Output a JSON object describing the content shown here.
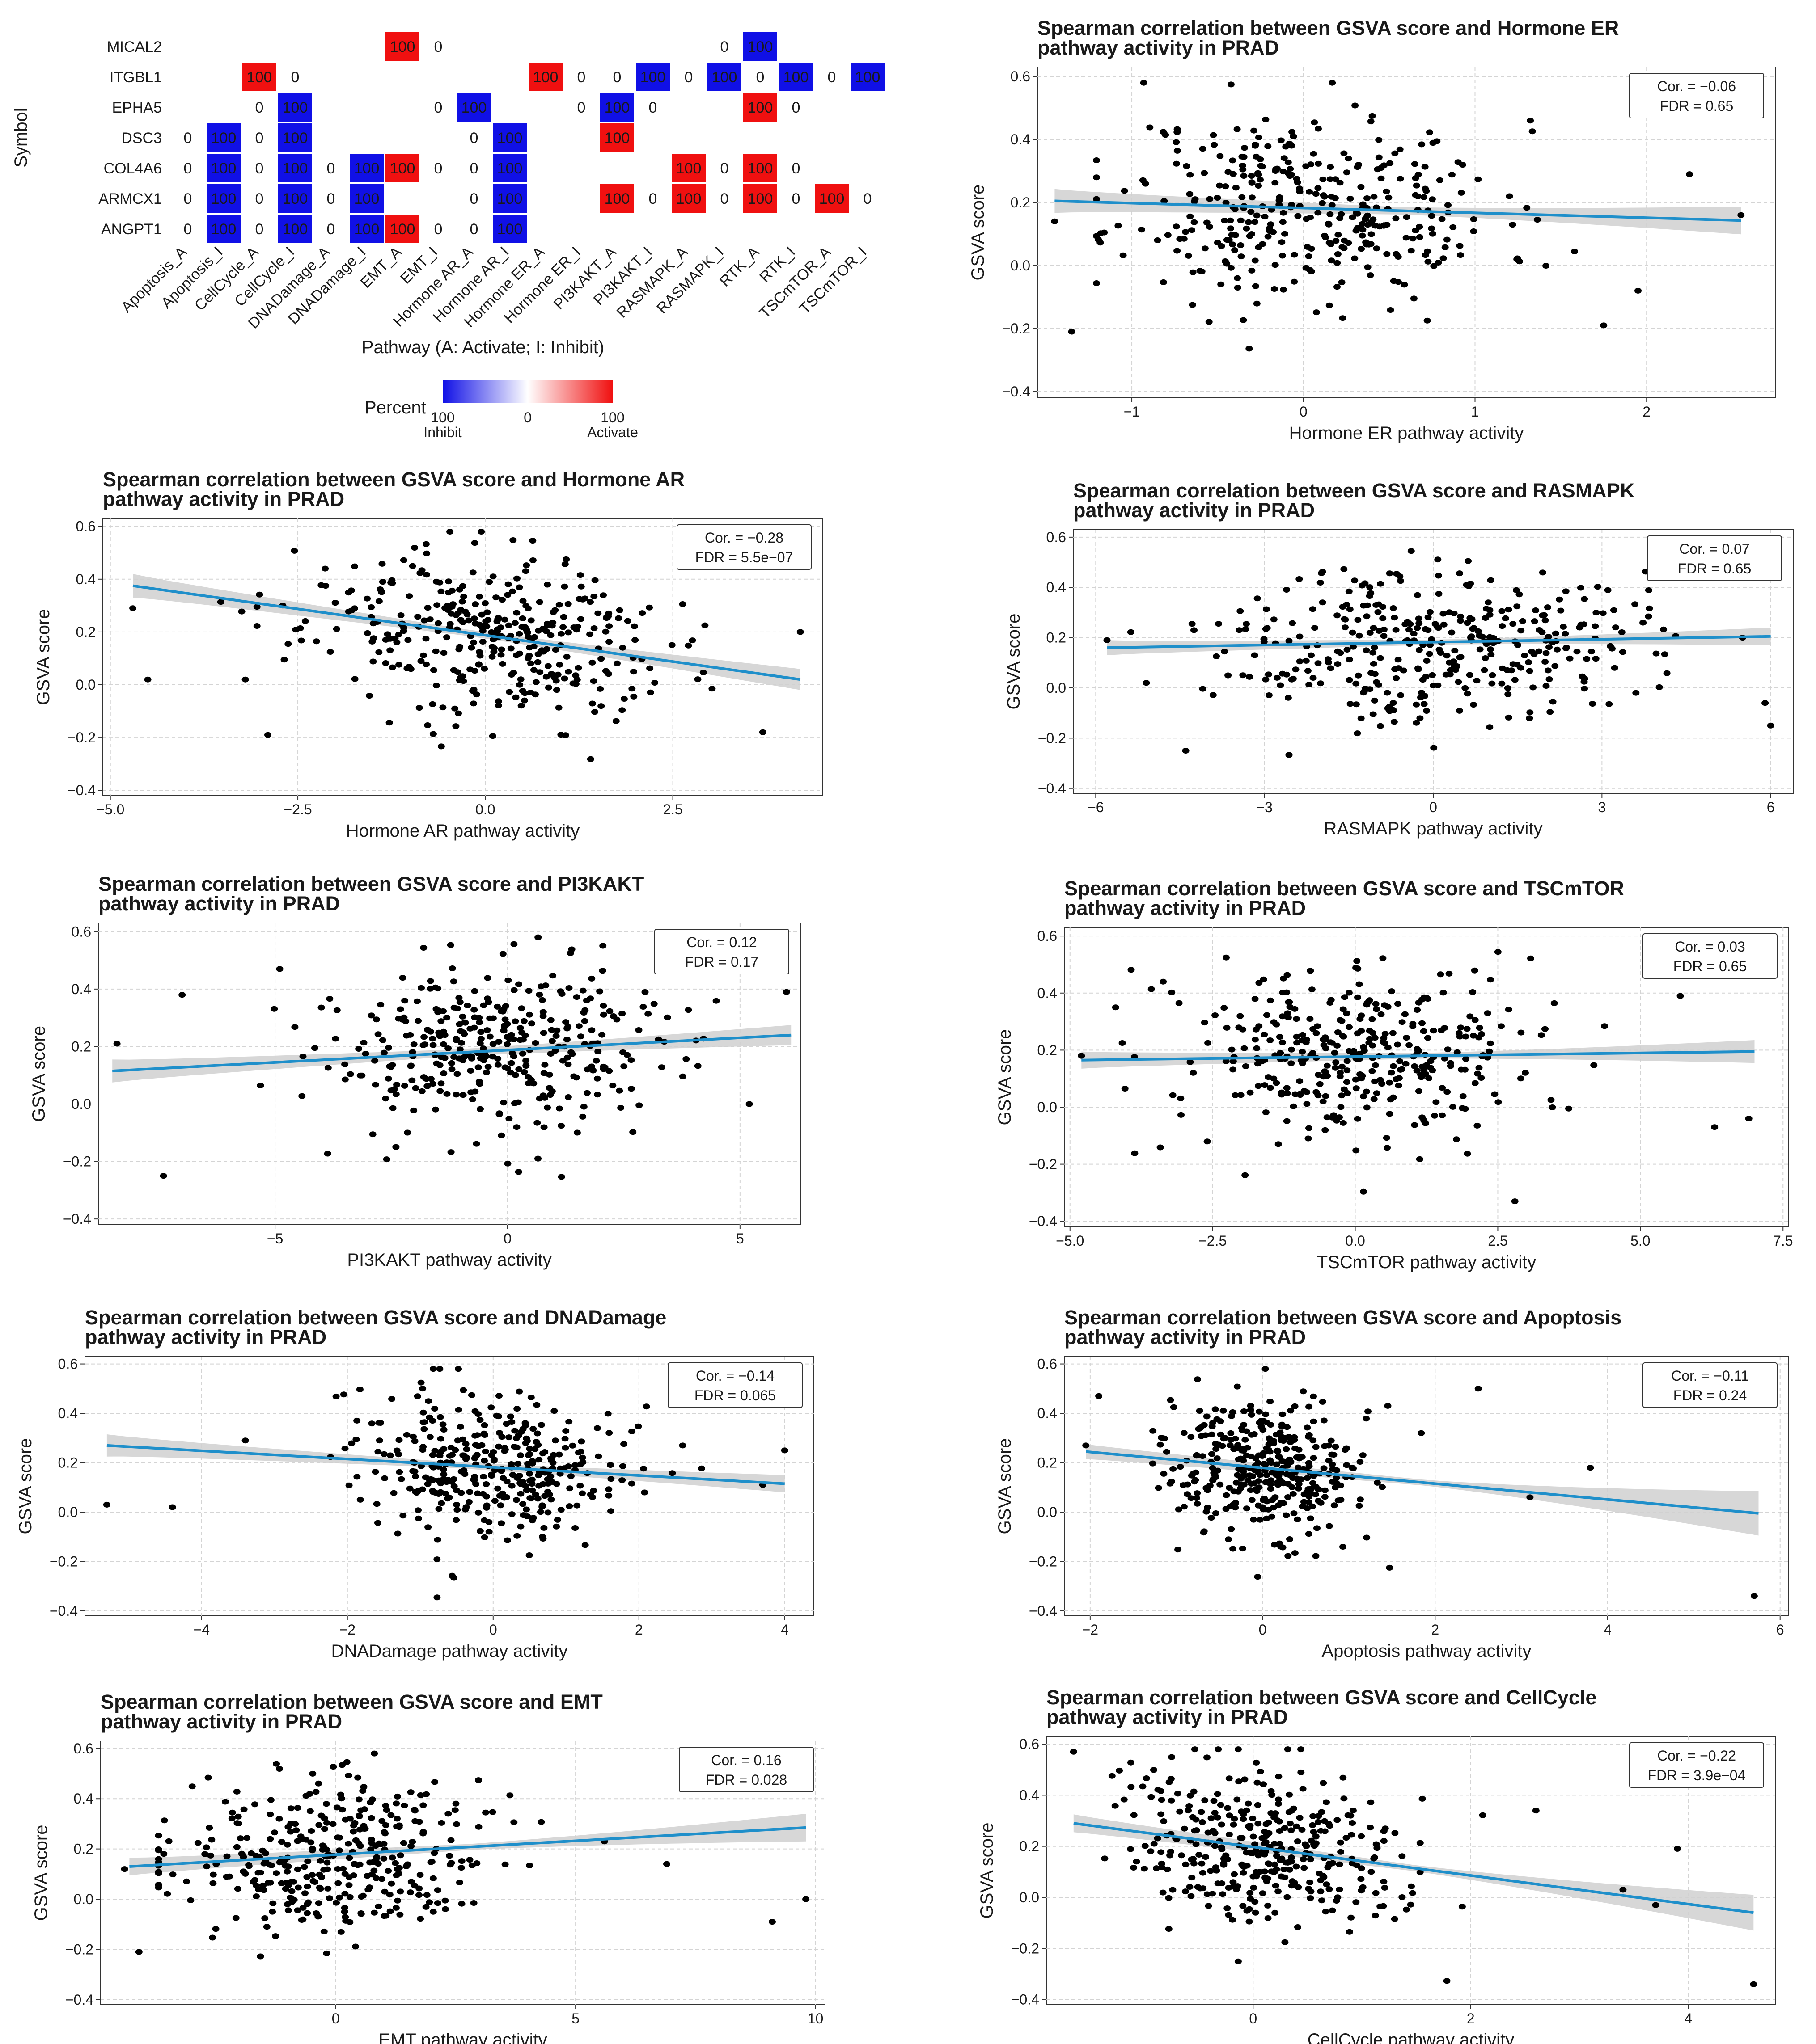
{
  "figure_name": "GSVA pathway correlation figure (PRAD)",
  "colors": {
    "activate": "#f01010",
    "inhibit": "#1010e6",
    "point": "#000000",
    "fit_line": "#1f8fca",
    "ribbon": "#d0d0d0",
    "grid": "#d4d4d4"
  },
  "chart_data": [
    {
      "type": "heatmap",
      "id": "heatmap",
      "xlabel": "Pathway (A: Activate; I: Inhibit)",
      "ylabel": "Symbol",
      "rows": [
        "MICAL2",
        "ITGBL1",
        "EPHA5",
        "DSC3",
        "COL4A6",
        "ARMCX1",
        "ANGPT1"
      ],
      "columns": [
        "Apoptosis_A",
        "Apoptosis_I",
        "CellCycle_A",
        "CellCycle_I",
        "DNADamage_A",
        "DNADamage_I",
        "EMT_A",
        "EMT_I",
        "Hormone AR_A",
        "Hormone AR_I",
        "Hormone ER_A",
        "Hormone ER_I",
        "PI3KAKT_A",
        "PI3KAKT_I",
        "RASMAPK_A",
        "RASMAPK_I",
        "RTK_A",
        "RTK_I",
        "TSCmTOR_A",
        "TSCmTOR_I"
      ],
      "cells": [
        [
          "",
          "",
          "",
          "",
          "",
          "",
          "100",
          "0",
          "",
          "",
          "",
          "",
          "",
          "",
          "",
          "0",
          "100",
          "",
          "",
          ""
        ],
        [
          "",
          "",
          "100",
          "0",
          "",
          "",
          "",
          "",
          "",
          "",
          "100",
          "0",
          "0",
          "100",
          "0",
          "100",
          "0",
          "100",
          "0",
          "100"
        ],
        [
          "",
          "",
          "0",
          "100",
          "",
          "",
          "",
          "0",
          "100",
          "",
          "",
          "0",
          "100",
          "0",
          "",
          "",
          "100",
          "0",
          "",
          ""
        ],
        [
          "0",
          "100",
          "0",
          "100",
          "",
          "",
          "",
          "",
          "0",
          "100",
          "",
          "",
          "100",
          "",
          "",
          "",
          "",
          "",
          "",
          ""
        ],
        [
          "0",
          "100",
          "0",
          "100",
          "0",
          "100",
          "100",
          "0",
          "0",
          "100",
          "",
          "",
          "",
          "",
          "100",
          "0",
          "100",
          "0",
          "",
          ""
        ],
        [
          "0",
          "100",
          "0",
          "100",
          "0",
          "100",
          "",
          "",
          "0",
          "100",
          "",
          "",
          "100",
          "0",
          "100",
          "0",
          "100",
          "0",
          "100",
          "0"
        ],
        [
          "0",
          "100",
          "0",
          "100",
          "0",
          "100",
          "100",
          "0",
          "0",
          "100",
          "",
          "",
          "",
          "",
          "",
          "",
          "",
          "",
          "",
          ""
        ]
      ],
      "direction": [
        [
          "",
          "",
          "",
          "",
          "",
          "",
          "A",
          "",
          "",
          "",
          "",
          "",
          "",
          "",
          "",
          "",
          "I",
          "",
          "",
          ""
        ],
        [
          "",
          "",
          "A",
          "",
          "",
          "",
          "",
          "",
          "",
          "",
          "A",
          "",
          "",
          "I",
          "",
          "I",
          "",
          "I",
          "",
          "I"
        ],
        [
          "",
          "",
          "",
          "I",
          "",
          "",
          "",
          "",
          "I",
          "",
          "",
          "",
          "I",
          "",
          "",
          "",
          "A",
          "",
          "",
          ""
        ],
        [
          "",
          "I",
          "",
          "I",
          "",
          "",
          "",
          "",
          "",
          "I",
          "",
          "",
          "A",
          "",
          "",
          "",
          "",
          "",
          "",
          ""
        ],
        [
          "",
          "I",
          "",
          "I",
          "",
          "I",
          "A",
          "",
          "",
          "I",
          "",
          "",
          "",
          "",
          "A",
          "",
          "A",
          "",
          "",
          ""
        ],
        [
          "",
          "I",
          "",
          "I",
          "",
          "I",
          "",
          "",
          "",
          "I",
          "",
          "",
          "A",
          "",
          "A",
          "",
          "A",
          "",
          "A",
          ""
        ],
        [
          "",
          "I",
          "",
          "I",
          "",
          "I",
          "A",
          "",
          "",
          "I",
          "",
          "",
          "",
          "",
          "",
          "",
          "",
          "",
          "",
          ""
        ]
      ],
      "legend": {
        "title": "Percent",
        "min_label": "100",
        "min_sub": "Inhibit",
        "mid_label": "0",
        "max_label": "100",
        "max_sub": "Activate"
      }
    },
    {
      "type": "scatter",
      "id": "hormone-er",
      "title": [
        "Spearman correlation between GSVA score and Hormone ER",
        "pathway activity in PRAD"
      ],
      "xlabel": "Hormone ER pathway activity",
      "ylabel": "GSVA score",
      "xlim": [
        -1.55,
        2.75
      ],
      "ylim": [
        -0.42,
        0.63
      ],
      "xticks": [
        -1,
        0,
        1,
        2
      ],
      "xtick_labels": [
        "−1",
        "0",
        "1",
        "2"
      ],
      "yticks": [
        -0.4,
        -0.2,
        0.0,
        0.2,
        0.4,
        0.6
      ],
      "ytick_labels": [
        "−0.4",
        "−0.2",
        "0.0",
        "0.2",
        "0.4",
        "0.6"
      ],
      "cor_label": "Cor. = −0.06",
      "fdr_label": "FDR = 0.65",
      "fit": {
        "x": [
          -1.45,
          2.55
        ],
        "y": [
          0.205,
          0.143
        ],
        "band": [
          0.038,
          0.012,
          0.044
        ]
      },
      "n_points": 360,
      "seed": 11,
      "x_center": 0.05,
      "x_sd": 0.55,
      "outliers": [
        [
          -1.45,
          0.14
        ],
        [
          -1.35,
          -0.21
        ],
        [
          2.55,
          0.16
        ],
        [
          2.25,
          0.29
        ],
        [
          1.95,
          -0.08
        ],
        [
          1.75,
          -0.19
        ]
      ]
    },
    {
      "type": "scatter",
      "id": "hormone-ar",
      "title": [
        "Spearman correlation between GSVA score and Hormone AR",
        "pathway activity in PRAD"
      ],
      "xlabel": "Hormone AR pathway activity",
      "ylabel": "GSVA score",
      "xlim": [
        -5.1,
        4.5
      ],
      "ylim": [
        -0.42,
        0.63
      ],
      "xticks": [
        -5.0,
        -2.5,
        0.0,
        2.5
      ],
      "xtick_labels": [
        "−5.0",
        "−2.5",
        "0.0",
        "2.5"
      ],
      "yticks": [
        -0.4,
        -0.2,
        0.0,
        0.2,
        0.4,
        0.6
      ],
      "ytick_labels": [
        "−0.4",
        "−0.2",
        "0.0",
        "0.2",
        "0.4",
        "0.6"
      ],
      "cor_label": "Cor. = −0.28",
      "fdr_label": "FDR = 5.5e−07",
      "fit": {
        "x": [
          -4.7,
          4.2
        ],
        "y": [
          0.375,
          0.02
        ],
        "band": [
          0.045,
          0.012,
          0.04
        ]
      },
      "n_points": 360,
      "seed": 23,
      "x_center": 0.0,
      "x_sd": 1.2,
      "outliers": [
        [
          -4.7,
          0.29
        ],
        [
          -4.5,
          0.02
        ],
        [
          -3.2,
          0.02
        ],
        [
          -2.9,
          -0.19
        ],
        [
          4.2,
          0.2
        ],
        [
          3.7,
          -0.18
        ]
      ]
    },
    {
      "type": "scatter",
      "id": "rasmapk",
      "title": [
        "Spearman correlation between GSVA score and RASMAPK",
        "pathway activity in PRAD"
      ],
      "xlabel": "RASMAPK pathway activity",
      "ylabel": "GSVA score",
      "xlim": [
        -6.4,
        6.4
      ],
      "ylim": [
        -0.42,
        0.63
      ],
      "xticks": [
        -6,
        -3,
        0,
        3,
        6
      ],
      "xtick_labels": [
        "−6",
        "−3",
        "0",
        "3",
        "6"
      ],
      "yticks": [
        -0.4,
        -0.2,
        0.0,
        0.2,
        0.4,
        0.6
      ],
      "ytick_labels": [
        "−0.4",
        "−0.2",
        "0.0",
        "0.2",
        "0.4",
        "0.6"
      ],
      "cor_label": "Cor. = 0.07",
      "fdr_label": "FDR = 0.65",
      "fit": {
        "x": [
          -5.8,
          6.0
        ],
        "y": [
          0.16,
          0.205
        ],
        "band": [
          0.03,
          0.01,
          0.035
        ]
      },
      "n_points": 360,
      "seed": 37,
      "x_center": 0.0,
      "x_sd": 1.8,
      "outliers": [
        [
          -5.8,
          0.19
        ],
        [
          -5.1,
          0.02
        ],
        [
          -4.4,
          -0.25
        ],
        [
          5.9,
          -0.06
        ],
        [
          6.0,
          -0.15
        ],
        [
          5.5,
          0.2
        ]
      ]
    },
    {
      "type": "scatter",
      "id": "pi3kakt",
      "title": [
        "Spearman correlation between GSVA score and PI3KAKT",
        "pathway activity in PRAD"
      ],
      "xlabel": "PI3KAKT pathway activity",
      "ylabel": "GSVA score",
      "xlim": [
        -8.8,
        6.3
      ],
      "ylim": [
        -0.42,
        0.63
      ],
      "xticks": [
        -5,
        0,
        5
      ],
      "xtick_labels": [
        "−5",
        "0",
        "5"
      ],
      "yticks": [
        -0.4,
        -0.2,
        0.0,
        0.2,
        0.4,
        0.6
      ],
      "ytick_labels": [
        "−0.4",
        "−0.2",
        "0.0",
        "0.2",
        "0.4",
        "0.6"
      ],
      "cor_label": "Cor. = 0.12",
      "fdr_label": "FDR = 0.17",
      "fit": {
        "x": [
          -8.5,
          6.1
        ],
        "y": [
          0.115,
          0.24
        ],
        "band": [
          0.04,
          0.012,
          0.035
        ]
      },
      "n_points": 360,
      "seed": 53,
      "x_center": 0.0,
      "x_sd": 2.0,
      "outliers": [
        [
          -8.4,
          0.21
        ],
        [
          -7.4,
          -0.25
        ],
        [
          -7.0,
          0.38
        ],
        [
          6.0,
          0.39
        ],
        [
          5.2,
          0.0
        ],
        [
          -4.9,
          0.47
        ]
      ]
    },
    {
      "type": "scatter",
      "id": "tscmtor",
      "title": [
        "Spearman correlation between GSVA score and TSCmTOR",
        "pathway activity in PRAD"
      ],
      "xlabel": "TSCmTOR pathway activity",
      "ylabel": "GSVA score",
      "xlim": [
        -5.1,
        7.6
      ],
      "ylim": [
        -0.42,
        0.63
      ],
      "xticks": [
        -5.0,
        -2.5,
        0.0,
        2.5,
        5.0,
        7.5
      ],
      "xtick_labels": [
        "−5.0",
        "−2.5",
        "0.0",
        "2.5",
        "5.0",
        "7.5"
      ],
      "yticks": [
        -0.4,
        -0.2,
        0.0,
        0.2,
        0.4,
        0.6
      ],
      "ytick_labels": [
        "−0.4",
        "−0.2",
        "0.0",
        "0.2",
        "0.4",
        "0.6"
      ],
      "cor_label": "Cor. = 0.03",
      "fdr_label": "FDR = 0.65",
      "fit": {
        "x": [
          -4.8,
          7.0
        ],
        "y": [
          0.165,
          0.195
        ],
        "band": [
          0.03,
          0.01,
          0.04
        ]
      },
      "n_points": 360,
      "seed": 71,
      "x_center": 0.0,
      "x_sd": 1.6,
      "outliers": [
        [
          -4.8,
          0.18
        ],
        [
          6.9,
          -0.04
        ],
        [
          6.3,
          -0.07
        ],
        [
          -4.2,
          0.35
        ],
        [
          5.7,
          0.39
        ],
        [
          2.8,
          -0.33
        ]
      ]
    },
    {
      "type": "scatter",
      "id": "dnadamage",
      "title": [
        "Spearman correlation between GSVA score and DNADamage",
        "pathway activity in PRAD"
      ],
      "xlabel": "DNADamage pathway activity",
      "ylabel": "GSVA score",
      "xlim": [
        -5.6,
        4.4
      ],
      "ylim": [
        -0.42,
        0.63
      ],
      "xticks": [
        -4,
        -2,
        0,
        2,
        4
      ],
      "xtick_labels": [
        "−4",
        "−2",
        "0",
        "2",
        "4"
      ],
      "yticks": [
        -0.4,
        -0.2,
        0.0,
        0.2,
        0.4,
        0.6
      ],
      "ytick_labels": [
        "−0.4",
        "−0.2",
        "0.0",
        "0.2",
        "0.4",
        "0.6"
      ],
      "cor_label": "Cor. = −0.14",
      "fdr_label": "FDR = 0.065",
      "fit": {
        "x": [
          -5.3,
          4.0
        ],
        "y": [
          0.27,
          0.115
        ],
        "band": [
          0.045,
          0.012,
          0.035
        ]
      },
      "n_points": 360,
      "seed": 89,
      "x_center": 0.0,
      "x_sd": 0.9,
      "outliers": [
        [
          -5.3,
          0.03
        ],
        [
          -4.4,
          0.02
        ],
        [
          4.0,
          0.25
        ],
        [
          3.7,
          0.11
        ],
        [
          -3.4,
          0.29
        ],
        [
          2.6,
          0.27
        ]
      ]
    },
    {
      "type": "scatter",
      "id": "apoptosis",
      "title": [
        "Spearman correlation between GSVA score and Apoptosis",
        "pathway activity in PRAD"
      ],
      "xlabel": "Apoptosis pathway activity",
      "ylabel": "GSVA score",
      "xlim": [
        -2.3,
        6.1
      ],
      "ylim": [
        -0.42,
        0.63
      ],
      "xticks": [
        -2,
        0,
        2,
        4,
        6
      ],
      "xtick_labels": [
        "−2",
        "0",
        "2",
        "4",
        "6"
      ],
      "yticks": [
        -0.4,
        -0.2,
        0.0,
        0.2,
        0.4,
        0.6
      ],
      "ytick_labels": [
        "−0.4",
        "−0.2",
        "0.0",
        "0.2",
        "0.4",
        "0.6"
      ],
      "cor_label": "Cor. = −0.11",
      "fdr_label": "FDR = 0.24",
      "fit": {
        "x": [
          -2.05,
          5.75
        ],
        "y": [
          0.245,
          -0.005
        ],
        "band": [
          0.03,
          0.012,
          0.09
        ]
      },
      "n_points": 360,
      "seed": 97,
      "x_center": 0.0,
      "x_sd": 0.6,
      "outliers": [
        [
          -2.05,
          0.27
        ],
        [
          5.7,
          -0.34
        ],
        [
          2.5,
          0.5
        ],
        [
          3.8,
          0.18
        ],
        [
          3.1,
          0.06
        ],
        [
          -1.9,
          0.47
        ]
      ]
    },
    {
      "type": "scatter",
      "id": "emt",
      "title": [
        "Spearman correlation between GSVA score and EMT",
        "pathway activity in PRAD"
      ],
      "xlabel": "EMT pathway activity",
      "ylabel": "GSVA score",
      "xlim": [
        -4.9,
        10.2
      ],
      "ylim": [
        -0.42,
        0.63
      ],
      "xticks": [
        0,
        5,
        10
      ],
      "xtick_labels": [
        "0",
        "5",
        "10"
      ],
      "yticks": [
        -0.4,
        -0.2,
        0.0,
        0.2,
        0.4,
        0.6
      ],
      "ytick_labels": [
        "−0.4",
        "−0.2",
        "0.0",
        "0.2",
        "0.4",
        "0.6"
      ],
      "cor_label": "Cor. = 0.16",
      "fdr_label": "FDR = 0.028",
      "fit": {
        "x": [
          -4.3,
          9.8
        ],
        "y": [
          0.13,
          0.285
        ],
        "band": [
          0.035,
          0.012,
          0.055
        ]
      },
      "n_points": 360,
      "seed": 131,
      "x_center": -0.3,
      "x_sd": 1.7,
      "outliers": [
        [
          9.8,
          0.0
        ],
        [
          9.1,
          -0.09
        ],
        [
          -4.4,
          0.12
        ],
        [
          -4.1,
          -0.21
        ],
        [
          6.9,
          0.14
        ],
        [
          5.6,
          0.23
        ]
      ]
    },
    {
      "type": "scatter",
      "id": "cellcycle",
      "title": [
        "Spearman correlation between GSVA score and CellCycle",
        "pathway activity in PRAD"
      ],
      "xlabel": "CellCycle pathway activity",
      "ylabel": "GSVA score",
      "xlim": [
        -1.9,
        4.8
      ],
      "ylim": [
        -0.42,
        0.63
      ],
      "xticks": [
        0,
        2,
        4
      ],
      "xtick_labels": [
        "0",
        "2",
        "4"
      ],
      "yticks": [
        -0.4,
        -0.2,
        0.0,
        0.2,
        0.4,
        0.6
      ],
      "ytick_labels": [
        "−0.4",
        "−0.2",
        "0.0",
        "0.2",
        "0.4",
        "0.6"
      ],
      "cor_label": "Cor. = −0.22",
      "fdr_label": "FDR = 3.9e−04",
      "fit": {
        "x": [
          -1.65,
          4.6
        ],
        "y": [
          0.29,
          -0.06
        ],
        "band": [
          0.035,
          0.012,
          0.07
        ]
      },
      "n_points": 360,
      "seed": 157,
      "x_center": 0.1,
      "x_sd": 0.6,
      "outliers": [
        [
          -1.65,
          0.57
        ],
        [
          4.6,
          -0.34
        ],
        [
          3.7,
          -0.03
        ],
        [
          3.4,
          0.03
        ],
        [
          2.6,
          0.34
        ],
        [
          3.9,
          0.19
        ]
      ]
    }
  ]
}
